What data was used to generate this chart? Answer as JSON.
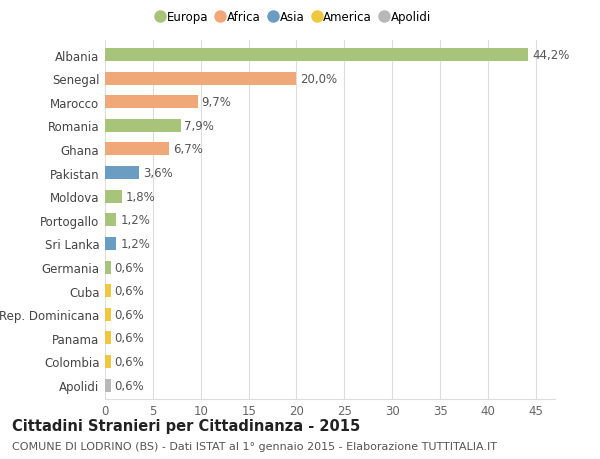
{
  "title": "Cittadini Stranieri per Cittadinanza - 2015",
  "subtitle": "COMUNE DI LODRINO (BS) - Dati ISTAT al 1° gennaio 2015 - Elaborazione TUTTITALIA.IT",
  "categories": [
    "Albania",
    "Senegal",
    "Marocco",
    "Romania",
    "Ghana",
    "Pakistan",
    "Moldova",
    "Portogallo",
    "Sri Lanka",
    "Germania",
    "Cuba",
    "Rep. Dominicana",
    "Panama",
    "Colombia",
    "Apolidi"
  ],
  "values": [
    44.2,
    20.0,
    9.7,
    7.9,
    6.7,
    3.6,
    1.8,
    1.2,
    1.2,
    0.6,
    0.6,
    0.6,
    0.6,
    0.6,
    0.6
  ],
  "labels": [
    "44,2%",
    "20,0%",
    "9,7%",
    "7,9%",
    "6,7%",
    "3,6%",
    "1,8%",
    "1,2%",
    "1,2%",
    "0,6%",
    "0,6%",
    "0,6%",
    "0,6%",
    "0,6%",
    "0,6%"
  ],
  "continents": [
    "Europa",
    "Africa",
    "Africa",
    "Europa",
    "Africa",
    "Asia",
    "Europa",
    "Europa",
    "Asia",
    "Europa",
    "America",
    "America",
    "America",
    "America",
    "Apolidi"
  ],
  "continent_colors": {
    "Europa": "#a8c47a",
    "Africa": "#f0a878",
    "Asia": "#6b9dc2",
    "America": "#f0c840",
    "Apolidi": "#b8b8b8"
  },
  "legend_order": [
    "Europa",
    "Africa",
    "Asia",
    "America",
    "Apolidi"
  ],
  "xlim": [
    0,
    47
  ],
  "xticks": [
    0,
    5,
    10,
    15,
    20,
    25,
    30,
    35,
    40,
    45
  ],
  "background_color": "#ffffff",
  "grid_color": "#dddddd",
  "bar_height": 0.55,
  "label_fontsize": 8.5,
  "title_fontsize": 10.5,
  "subtitle_fontsize": 8.0
}
